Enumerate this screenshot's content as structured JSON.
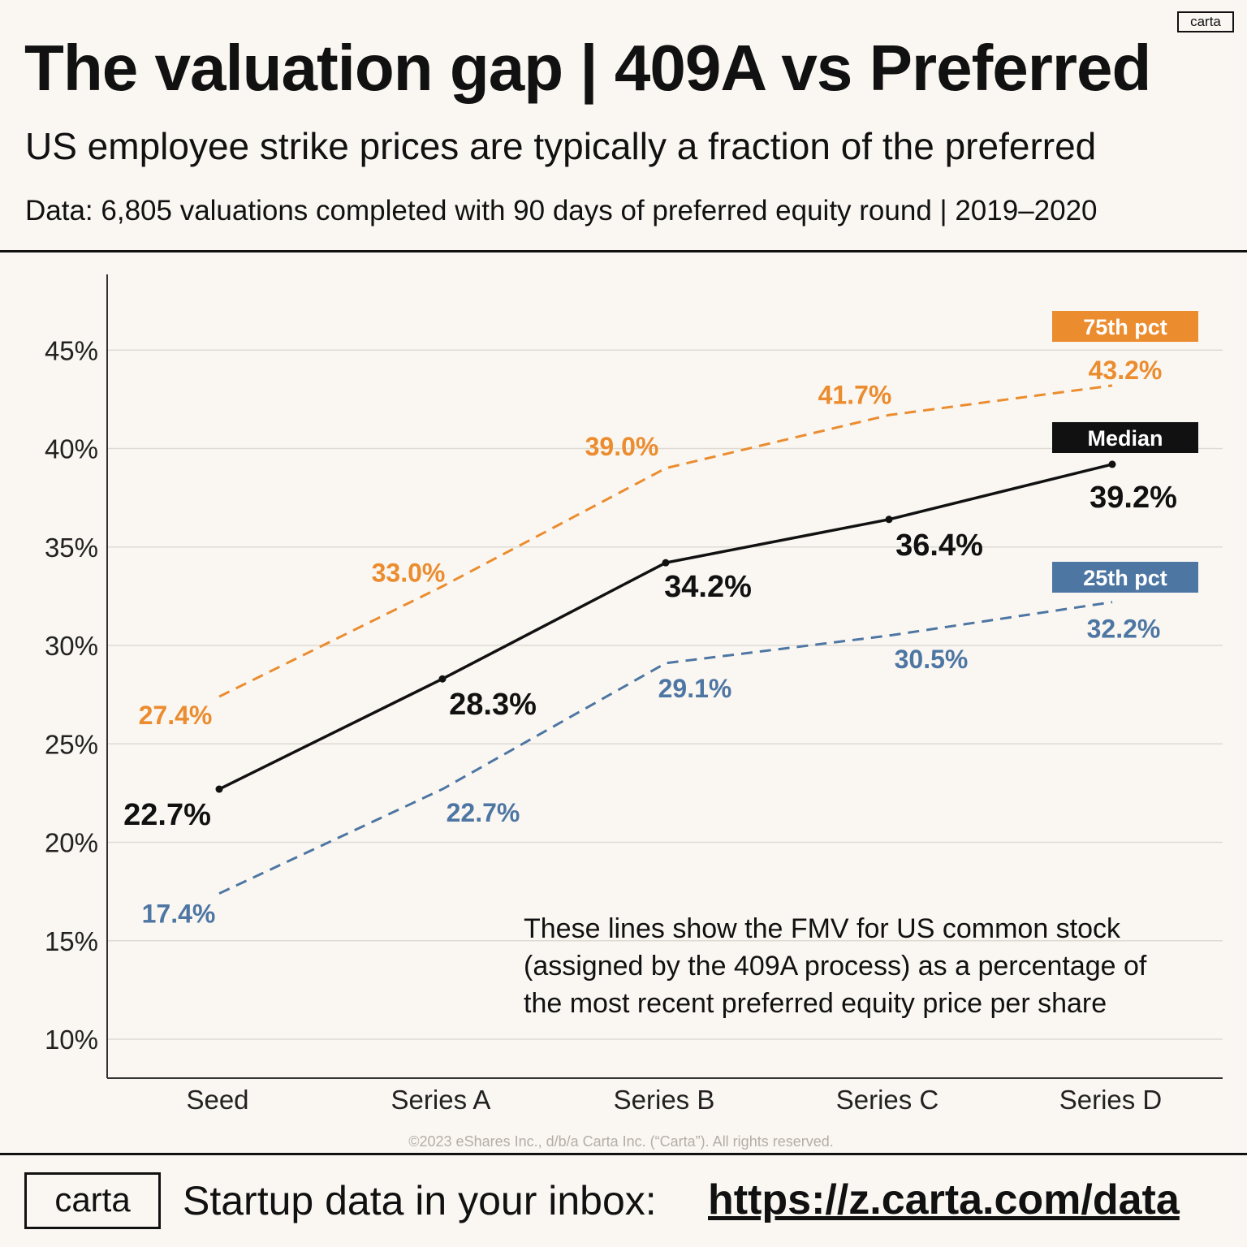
{
  "brand": {
    "corner_logo": "carta",
    "footer_logo": "carta"
  },
  "header": {
    "title": "The valuation gap | 409A vs Preferred",
    "subtitle": "US employee strike prices are typically a fraction of the preferred",
    "data_note": "Data: 6,805 valuations completed with 90 days of preferred equity round | 2019–2020"
  },
  "footer": {
    "text": "Startup data in your inbox:",
    "url": "https://z.carta.com/data"
  },
  "chart_data": {
    "type": "line",
    "categories": [
      "Seed",
      "Series A",
      "Series B",
      "Series C",
      "Series D"
    ],
    "y_ticks": [
      10,
      15,
      20,
      25,
      30,
      35,
      40,
      45
    ],
    "y_tick_labels": [
      "10%",
      "15%",
      "20%",
      "25%",
      "30%",
      "35%",
      "40%",
      "45%"
    ],
    "ylim": [
      8,
      50
    ],
    "grid": true,
    "series": [
      {
        "name": "75th pct",
        "color": "#eb8c2f",
        "dashed": true,
        "markers": false,
        "bold_labels": false,
        "values": [
          27.4,
          33.0,
          39.0,
          41.7,
          43.2
        ],
        "labels": [
          "27.4%",
          "33.0%",
          "39.0%",
          "41.7%",
          "43.2%"
        ]
      },
      {
        "name": "Median",
        "color": "#111111",
        "dashed": false,
        "markers": true,
        "bold_labels": true,
        "values": [
          22.7,
          28.3,
          34.2,
          36.4,
          39.2
        ],
        "labels": [
          "22.7%",
          "28.3%",
          "34.2%",
          "36.4%",
          "39.2%"
        ]
      },
      {
        "name": "25th pct",
        "color": "#4e76a3",
        "dashed": true,
        "markers": false,
        "bold_labels": false,
        "values": [
          17.4,
          22.7,
          29.1,
          30.5,
          32.2
        ],
        "labels": [
          "17.4%",
          "22.7%",
          "29.1%",
          "30.5%",
          "32.2%"
        ]
      }
    ],
    "annotation": [
      "These lines show the FMV for US common stock",
      "(assigned by the 409A process) as a percentage of",
      "the most recent preferred equity price per share"
    ],
    "copyright": "©2023 eShares Inc., d/b/a Carta Inc. (“Carta”). All rights reserved."
  }
}
